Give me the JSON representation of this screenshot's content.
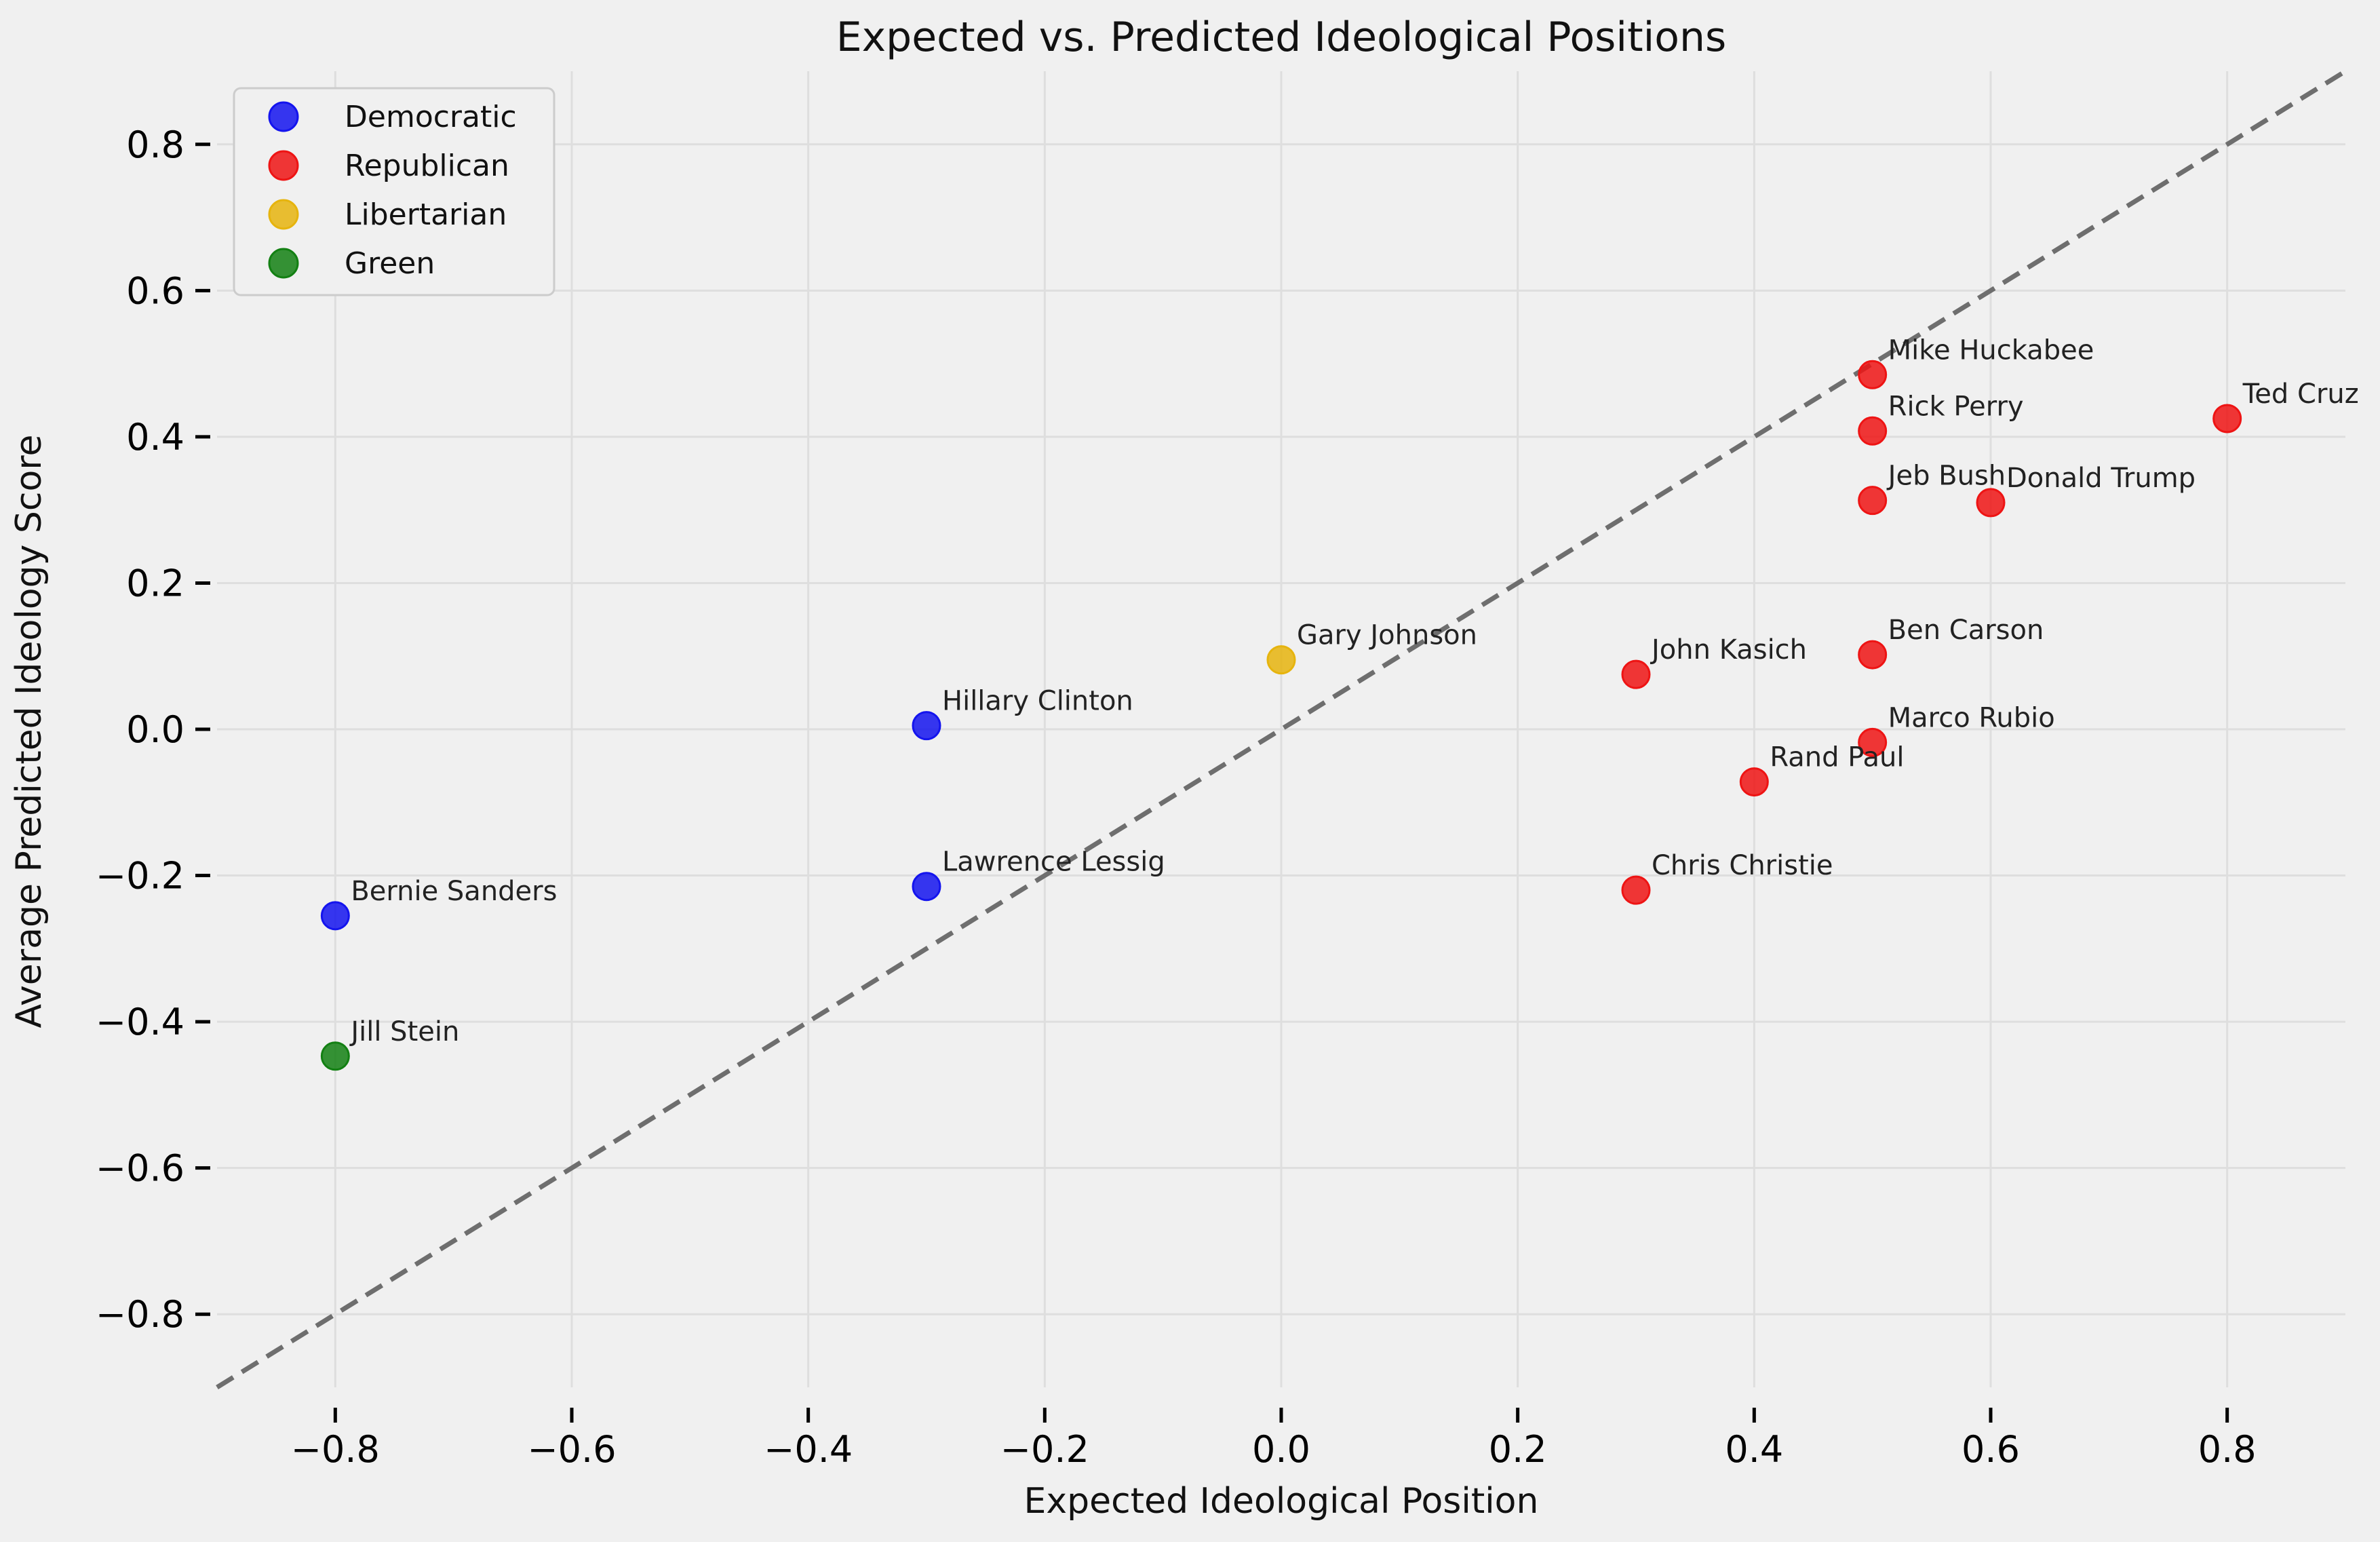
{
  "chart_data": {
    "type": "scatter",
    "title": "Expected vs. Predicted Ideological Positions",
    "xlabel": "Expected Ideological Position",
    "ylabel": "Average Predicted Ideology Score",
    "xlim": [
      -0.9,
      0.9
    ],
    "ylim": [
      -0.9,
      0.9
    ],
    "x_ticks": [
      -0.8,
      -0.6,
      -0.4,
      -0.2,
      0.0,
      0.2,
      0.4,
      0.6,
      0.8
    ],
    "y_ticks": [
      -0.8,
      -0.6,
      -0.4,
      -0.2,
      0.0,
      0.2,
      0.4,
      0.6,
      0.8
    ],
    "x_tick_labels": [
      "−0.8",
      "−0.6",
      "−0.4",
      "−0.2",
      "0.0",
      "0.2",
      "0.4",
      "0.6",
      "0.8"
    ],
    "y_tick_labels": [
      "−0.8",
      "−0.6",
      "−0.4",
      "−0.2",
      "0.0",
      "0.2",
      "0.4",
      "0.6",
      "0.8"
    ],
    "grid": true,
    "legend_position": "top-left",
    "reference_line": {
      "style": "dashed",
      "color": "#6e6e6e",
      "equation": "y = x"
    },
    "series": [
      {
        "name": "Democratic",
        "color": "#1414ee",
        "points": [
          {
            "label": "Bernie Sanders",
            "x": -0.8,
            "y": -0.255
          },
          {
            "label": "Hillary Clinton",
            "x": -0.3,
            "y": 0.005
          },
          {
            "label": "Lawrence Lessig",
            "x": -0.3,
            "y": -0.215
          }
        ]
      },
      {
        "name": "Republican",
        "color": "#ee1414",
        "points": [
          {
            "label": "Mike Huckabee",
            "x": 0.5,
            "y": 0.485
          },
          {
            "label": "Rick Perry",
            "x": 0.5,
            "y": 0.408
          },
          {
            "label": "Ted Cruz",
            "x": 0.8,
            "y": 0.425
          },
          {
            "label": "Jeb Bush",
            "x": 0.5,
            "y": 0.313
          },
          {
            "label": "Donald Trump",
            "x": 0.6,
            "y": 0.31
          },
          {
            "label": "Ben Carson",
            "x": 0.5,
            "y": 0.102
          },
          {
            "label": "John Kasich",
            "x": 0.3,
            "y": 0.075
          },
          {
            "label": "Marco Rubio",
            "x": 0.5,
            "y": -0.018
          },
          {
            "label": "Rand Paul",
            "x": 0.4,
            "y": -0.072
          },
          {
            "label": "Chris Christie",
            "x": 0.3,
            "y": -0.22
          }
        ]
      },
      {
        "name": "Libertarian",
        "color": "#e6b40e",
        "points": [
          {
            "label": "Gary Johnson",
            "x": 0.0,
            "y": 0.095
          }
        ]
      },
      {
        "name": "Green",
        "color": "#138013",
        "points": [
          {
            "label": "Jill Stein",
            "x": -0.8,
            "y": -0.447
          }
        ]
      }
    ]
  }
}
